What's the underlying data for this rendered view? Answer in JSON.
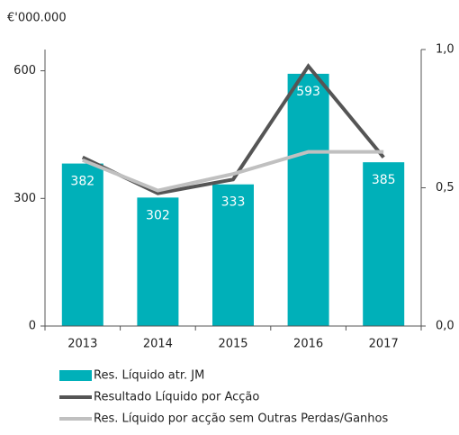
{
  "chart_data": {
    "type": "bar",
    "unit_label": "€'000.000",
    "categories": [
      "2013",
      "2014",
      "2015",
      "2016",
      "2017"
    ],
    "series": [
      {
        "name": "Res. Líquido atr. JM",
        "type": "bar",
        "color": "#00b0b9",
        "values": [
          382,
          302,
          333,
          593,
          385
        ]
      },
      {
        "name": "Resultado Líquido por Acção",
        "type": "line",
        "axis": "y2",
        "color": "#555555",
        "values": [
          0.61,
          0.48,
          0.53,
          0.94,
          0.61
        ]
      },
      {
        "name": "Res. Líquido por acção sem Outras Perdas/Ganhos",
        "type": "line",
        "axis": "y2",
        "color": "#c0c0c0",
        "values": [
          0.6,
          0.49,
          0.55,
          0.63,
          0.63
        ]
      }
    ],
    "ylim": [
      0,
      650
    ],
    "yticks": [
      0,
      300,
      600
    ],
    "y2lim": [
      0,
      1
    ],
    "y2ticks": [
      {
        "value": 0,
        "label": "0,0"
      },
      {
        "value": 0.5,
        "label": "0,5"
      },
      {
        "value": 1,
        "label": "1,0"
      }
    ]
  }
}
